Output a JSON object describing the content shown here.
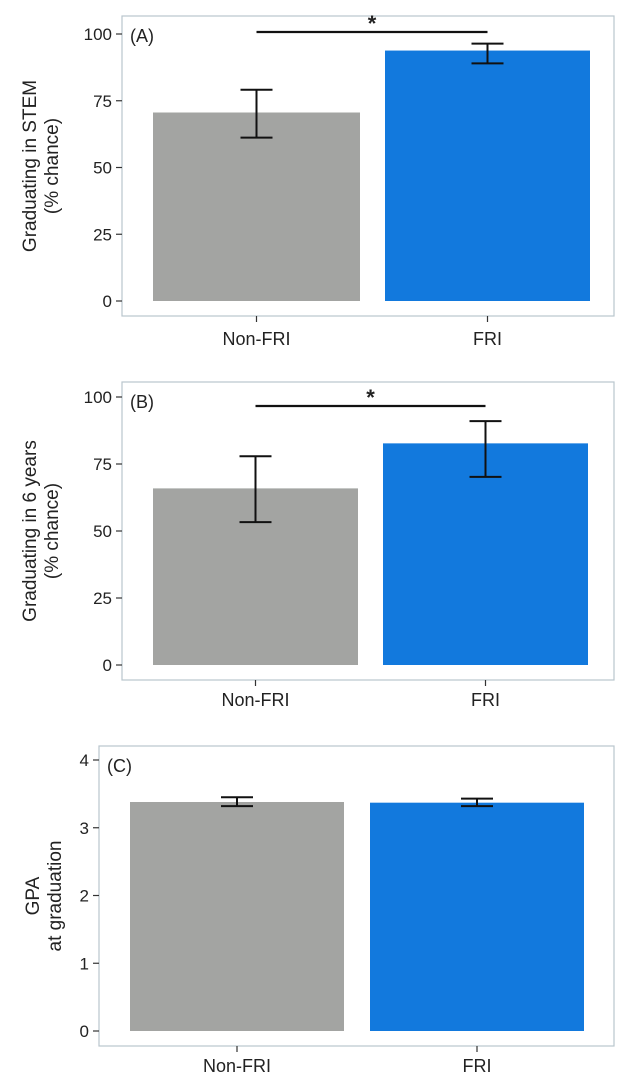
{
  "chart_data": [
    {
      "type": "bar",
      "panel_label": "(A)",
      "categories": [
        "Non-FRI",
        "FRI"
      ],
      "values": [
        70.6,
        93.8
      ],
      "error_low": [
        61.2,
        89.0
      ],
      "error_high": [
        79.1,
        96.4
      ],
      "colors": [
        "#a3a4a2",
        "#1279dd"
      ],
      "ylabel_lines": [
        "Graduating in STEM",
        "(% chance)"
      ],
      "xlabel": "",
      "ylim": [
        0,
        100
      ],
      "yticks": [
        "0",
        "25",
        "50",
        "75",
        "100"
      ],
      "significance": "*",
      "grid": false
    },
    {
      "type": "bar",
      "panel_label": "(B)",
      "categories": [
        "Non-FRI",
        "FRI"
      ],
      "values": [
        65.9,
        82.7
      ],
      "error_low": [
        53.3,
        70.2
      ],
      "error_high": [
        77.9,
        91.0
      ],
      "colors": [
        "#a3a4a2",
        "#1279dd"
      ],
      "ylabel_lines": [
        "Graduating in 6 years",
        "(% chance)"
      ],
      "xlabel": "",
      "ylim": [
        0,
        100
      ],
      "yticks": [
        "0",
        "25",
        "50",
        "75",
        "100"
      ],
      "significance": "*",
      "grid": false
    },
    {
      "type": "bar",
      "panel_label": "(C)",
      "categories": [
        "Non-FRI",
        "FRI"
      ],
      "values": [
        3.38,
        3.37
      ],
      "error_low": [
        3.32,
        3.32
      ],
      "error_high": [
        3.45,
        3.43
      ],
      "colors": [
        "#a3a4a2",
        "#1279dd"
      ],
      "ylabel_lines": [
        "GPA",
        "at graduation"
      ],
      "xlabel": "",
      "ylim": [
        0,
        4
      ],
      "yticks": [
        "0",
        "1",
        "2",
        "3",
        "4"
      ],
      "significance": "",
      "grid": false
    }
  ]
}
